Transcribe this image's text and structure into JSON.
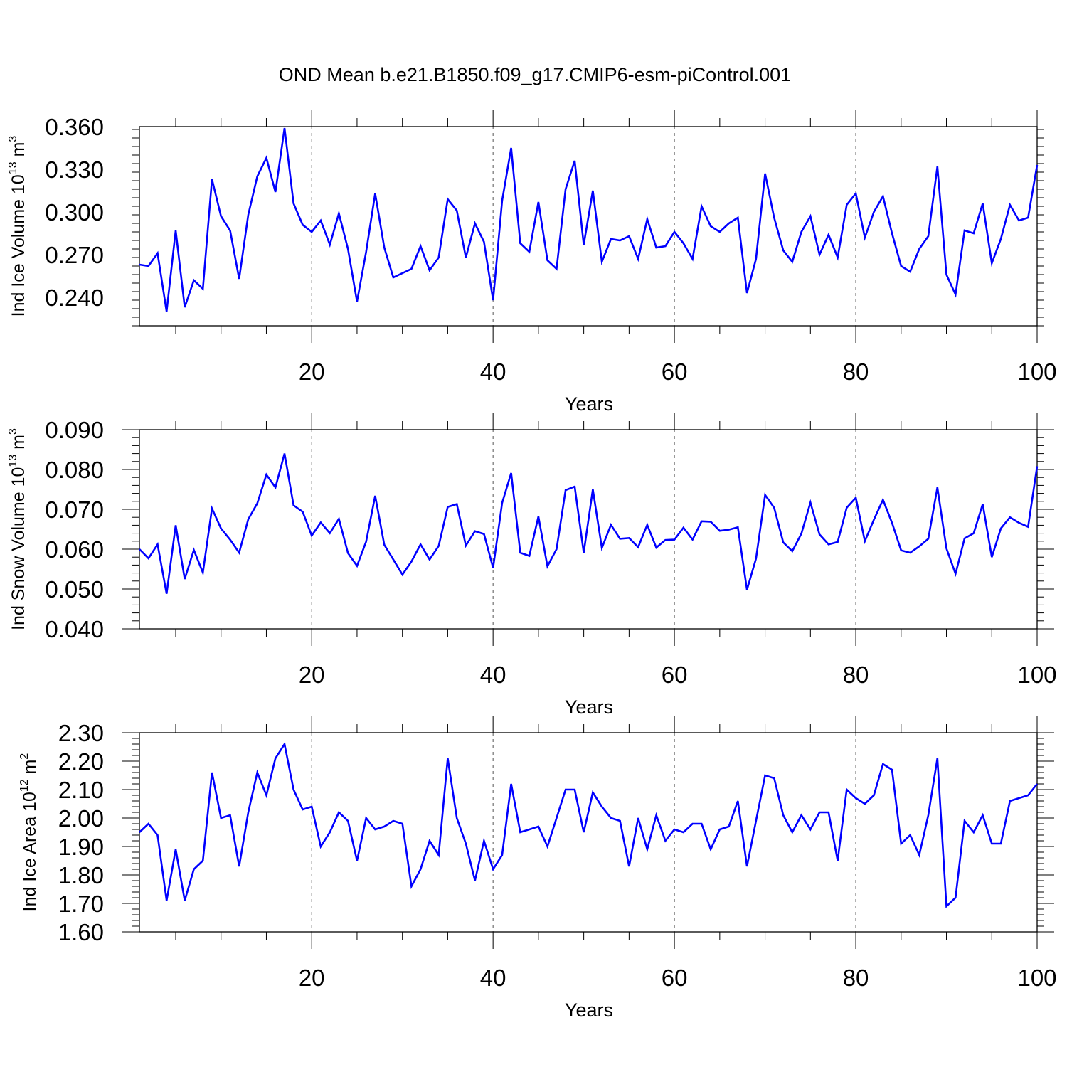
{
  "title": "OND Mean b.e21.B1850.f09_g17.CMIP6-esm-piControl.001",
  "colors": {
    "line": "#0000ff",
    "axis": "#000000",
    "grid": "#555555",
    "background": "#ffffff"
  },
  "chart_data": [
    {
      "type": "line",
      "name": "ice-volume",
      "title": "OND Mean b.e21.B1850.f09_g17.CMIP6-esm-piControl.001",
      "ylabel": {
        "text": "Ind Ice Volume 10",
        "exp": "13",
        "unit": " m",
        "unit_exp": "3"
      },
      "xlabel": "Years",
      "xlim": [
        1,
        100
      ],
      "ylim": [
        0.22,
        0.36
      ],
      "yticks": [
        0.24,
        0.27,
        0.3,
        0.33,
        0.36
      ],
      "ytick_labels": [
        "0.240",
        "0.270",
        "0.300",
        "0.330",
        "0.360"
      ],
      "xticks": [
        20,
        40,
        60,
        80,
        100
      ],
      "xtick_labels": [
        "20",
        "40",
        "60",
        "80",
        "100"
      ],
      "grid_x": [
        20,
        40,
        60,
        80
      ],
      "x_start": 1,
      "values": [
        0.263,
        0.262,
        0.271,
        0.23,
        0.287,
        0.233,
        0.252,
        0.246,
        0.323,
        0.297,
        0.287,
        0.253,
        0.298,
        0.325,
        0.338,
        0.314,
        0.359,
        0.306,
        0.291,
        0.286,
        0.294,
        0.277,
        0.299,
        0.274,
        0.237,
        0.272,
        0.313,
        0.275,
        0.254,
        0.257,
        0.26,
        0.276,
        0.259,
        0.268,
        0.309,
        0.301,
        0.268,
        0.292,
        0.279,
        0.238,
        0.308,
        0.345,
        0.278,
        0.272,
        0.307,
        0.266,
        0.26,
        0.316,
        0.336,
        0.277,
        0.315,
        0.265,
        0.281,
        0.28,
        0.283,
        0.267,
        0.295,
        0.275,
        0.276,
        0.286,
        0.278,
        0.267,
        0.304,
        0.29,
        0.286,
        0.292,
        0.296,
        0.243,
        0.267,
        0.327,
        0.296,
        0.273,
        0.265,
        0.286,
        0.297,
        0.27,
        0.284,
        0.268,
        0.305,
        0.313,
        0.282,
        0.3,
        0.311,
        0.285,
        0.262,
        0.258,
        0.274,
        0.283,
        0.332,
        0.256,
        0.242,
        0.287,
        0.285,
        0.306,
        0.264,
        0.281,
        0.305,
        0.294,
        0.296,
        0.333
      ]
    },
    {
      "type": "line",
      "name": "snow-volume",
      "ylabel": {
        "text": "Ind Snow Volume 10",
        "exp": "13",
        "unit": " m",
        "unit_exp": "3"
      },
      "xlabel": "Years",
      "xlim": [
        1,
        100
      ],
      "ylim": [
        0.04,
        0.09
      ],
      "yticks": [
        0.04,
        0.05,
        0.06,
        0.07,
        0.08,
        0.09
      ],
      "ytick_labels": [
        "0.040",
        "0.050",
        "0.060",
        "0.070",
        "0.080",
        "0.090"
      ],
      "xticks": [
        20,
        40,
        60,
        80,
        100
      ],
      "xtick_labels": [
        "20",
        "40",
        "60",
        "80",
        "100"
      ],
      "grid_x": [
        20,
        40,
        60,
        80
      ],
      "x_start": 1,
      "values": [
        0.06,
        0.0577,
        0.0612,
        0.0488,
        0.066,
        0.0525,
        0.0598,
        0.0541,
        0.0702,
        0.0652,
        0.0624,
        0.0591,
        0.0675,
        0.0715,
        0.0787,
        0.0755,
        0.084,
        0.071,
        0.0694,
        0.0634,
        0.0667,
        0.064,
        0.0676,
        0.059,
        0.0558,
        0.0619,
        0.0734,
        0.0611,
        0.0574,
        0.0536,
        0.0569,
        0.0612,
        0.0574,
        0.0608,
        0.0706,
        0.0713,
        0.0609,
        0.0645,
        0.0638,
        0.0553,
        0.0716,
        0.0791,
        0.0591,
        0.0583,
        0.0682,
        0.0557,
        0.06,
        0.0748,
        0.0757,
        0.0591,
        0.075,
        0.0603,
        0.0661,
        0.0626,
        0.0628,
        0.0605,
        0.0661,
        0.0604,
        0.0623,
        0.0624,
        0.0654,
        0.0624,
        0.067,
        0.0669,
        0.0646,
        0.0649,
        0.0655,
        0.0498,
        0.0576,
        0.0736,
        0.0704,
        0.0617,
        0.0595,
        0.0639,
        0.0717,
        0.0637,
        0.0612,
        0.0618,
        0.0704,
        0.0729,
        0.062,
        0.0674,
        0.0724,
        0.0666,
        0.0597,
        0.0591,
        0.0607,
        0.0626,
        0.0755,
        0.0602,
        0.0538,
        0.0627,
        0.064,
        0.0713,
        0.058,
        0.0652,
        0.068,
        0.0666,
        0.0656,
        0.0808
      ]
    },
    {
      "type": "line",
      "name": "ice-area",
      "ylabel": {
        "text": "Ind Ice Area 10",
        "exp": "12",
        "unit": " m",
        "unit_exp": "2"
      },
      "xlabel": "Years",
      "xlim": [
        1,
        100
      ],
      "ylim": [
        1.6,
        2.3
      ],
      "yticks": [
        1.6,
        1.7,
        1.8,
        1.9,
        2.0,
        2.1,
        2.2,
        2.3
      ],
      "ytick_labels": [
        "1.60",
        "1.70",
        "1.80",
        "1.90",
        "2.00",
        "2.10",
        "2.20",
        "2.30"
      ],
      "xticks": [
        20,
        40,
        60,
        80,
        100
      ],
      "xtick_labels": [
        "20",
        "40",
        "60",
        "80",
        "100"
      ],
      "grid_x": [
        20,
        40,
        60,
        80
      ],
      "x_start": 1,
      "values": [
        1.95,
        1.98,
        1.94,
        1.71,
        1.89,
        1.71,
        1.82,
        1.85,
        2.16,
        2.0,
        2.01,
        1.83,
        2.02,
        2.16,
        2.08,
        2.21,
        2.26,
        2.1,
        2.03,
        2.04,
        1.9,
        1.95,
        2.02,
        1.99,
        1.85,
        2.0,
        1.96,
        1.97,
        1.99,
        1.98,
        1.76,
        1.82,
        1.92,
        1.87,
        2.21,
        2.0,
        1.91,
        1.78,
        1.92,
        1.82,
        1.87,
        2.12,
        1.95,
        1.96,
        1.97,
        1.9,
        2.0,
        2.1,
        2.1,
        1.95,
        2.09,
        2.04,
        2.0,
        1.99,
        1.83,
        2.0,
        1.89,
        2.01,
        1.92,
        1.96,
        1.95,
        1.98,
        1.98,
        1.89,
        1.96,
        1.97,
        2.06,
        1.83,
        1.99,
        2.15,
        2.14,
        2.01,
        1.95,
        2.01,
        1.96,
        2.02,
        2.02,
        1.85,
        2.1,
        2.07,
        2.05,
        2.08,
        2.19,
        2.17,
        1.91,
        1.94,
        1.87,
        2.01,
        2.21,
        1.69,
        1.72,
        1.99,
        1.95,
        2.01,
        1.91,
        1.91,
        2.06,
        2.07,
        2.08,
        2.12
      ]
    }
  ]
}
